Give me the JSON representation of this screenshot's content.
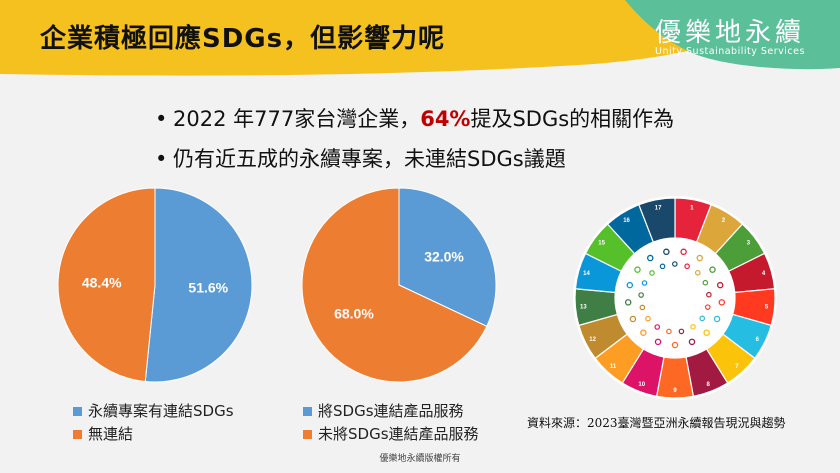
{
  "slide": {
    "title": "企業積極回應SDGs，但影響力呢",
    "brand": {
      "name": "優樂地永續",
      "subtitle": "Unity Sustainability Services"
    },
    "bullets": [
      {
        "dot": "•",
        "before": "2022 年777家台灣企業，",
        "highlight": "64%",
        "after": "提及SDGs的相關作為"
      },
      {
        "dot": "•",
        "before": "仍有近五成的永續專案，未連結SDGs議題"
      }
    ],
    "source": "資料來源：2023臺灣暨亞洲永續報告現況與趨勢",
    "copyright": "優樂地永續版權所有",
    "colors": {
      "blue": "#5b9bd5",
      "orange": "#ed7d31",
      "banner_yellow": "#f5c11e",
      "banner_teal": "#5bbf9a",
      "highlight": "#c00000"
    },
    "sdg_wheel": {
      "icon": "sdg-wheel-icon",
      "segment_numbers": [
        "1",
        "2",
        "3",
        "4",
        "5",
        "6",
        "7",
        "8",
        "9",
        "10",
        "11",
        "12",
        "13",
        "14",
        "15",
        "16",
        "17"
      ]
    }
  },
  "chart_data": [
    {
      "type": "pie",
      "labels": [
        "永續專案有連結SDGs",
        "無連結"
      ],
      "values": [
        51.6,
        48.4
      ],
      "value_labels": [
        "51.6%",
        "48.4%"
      ],
      "colors": [
        "#5b9bd5",
        "#ed7d31"
      ]
    },
    {
      "type": "pie",
      "labels": [
        "將SDGs連結產品服務",
        "未將SDGs連結產品服務"
      ],
      "values": [
        32.0,
        68.0
      ],
      "value_labels": [
        "32.0%",
        "68.0%"
      ],
      "colors": [
        "#5b9bd5",
        "#ed7d31"
      ]
    }
  ]
}
